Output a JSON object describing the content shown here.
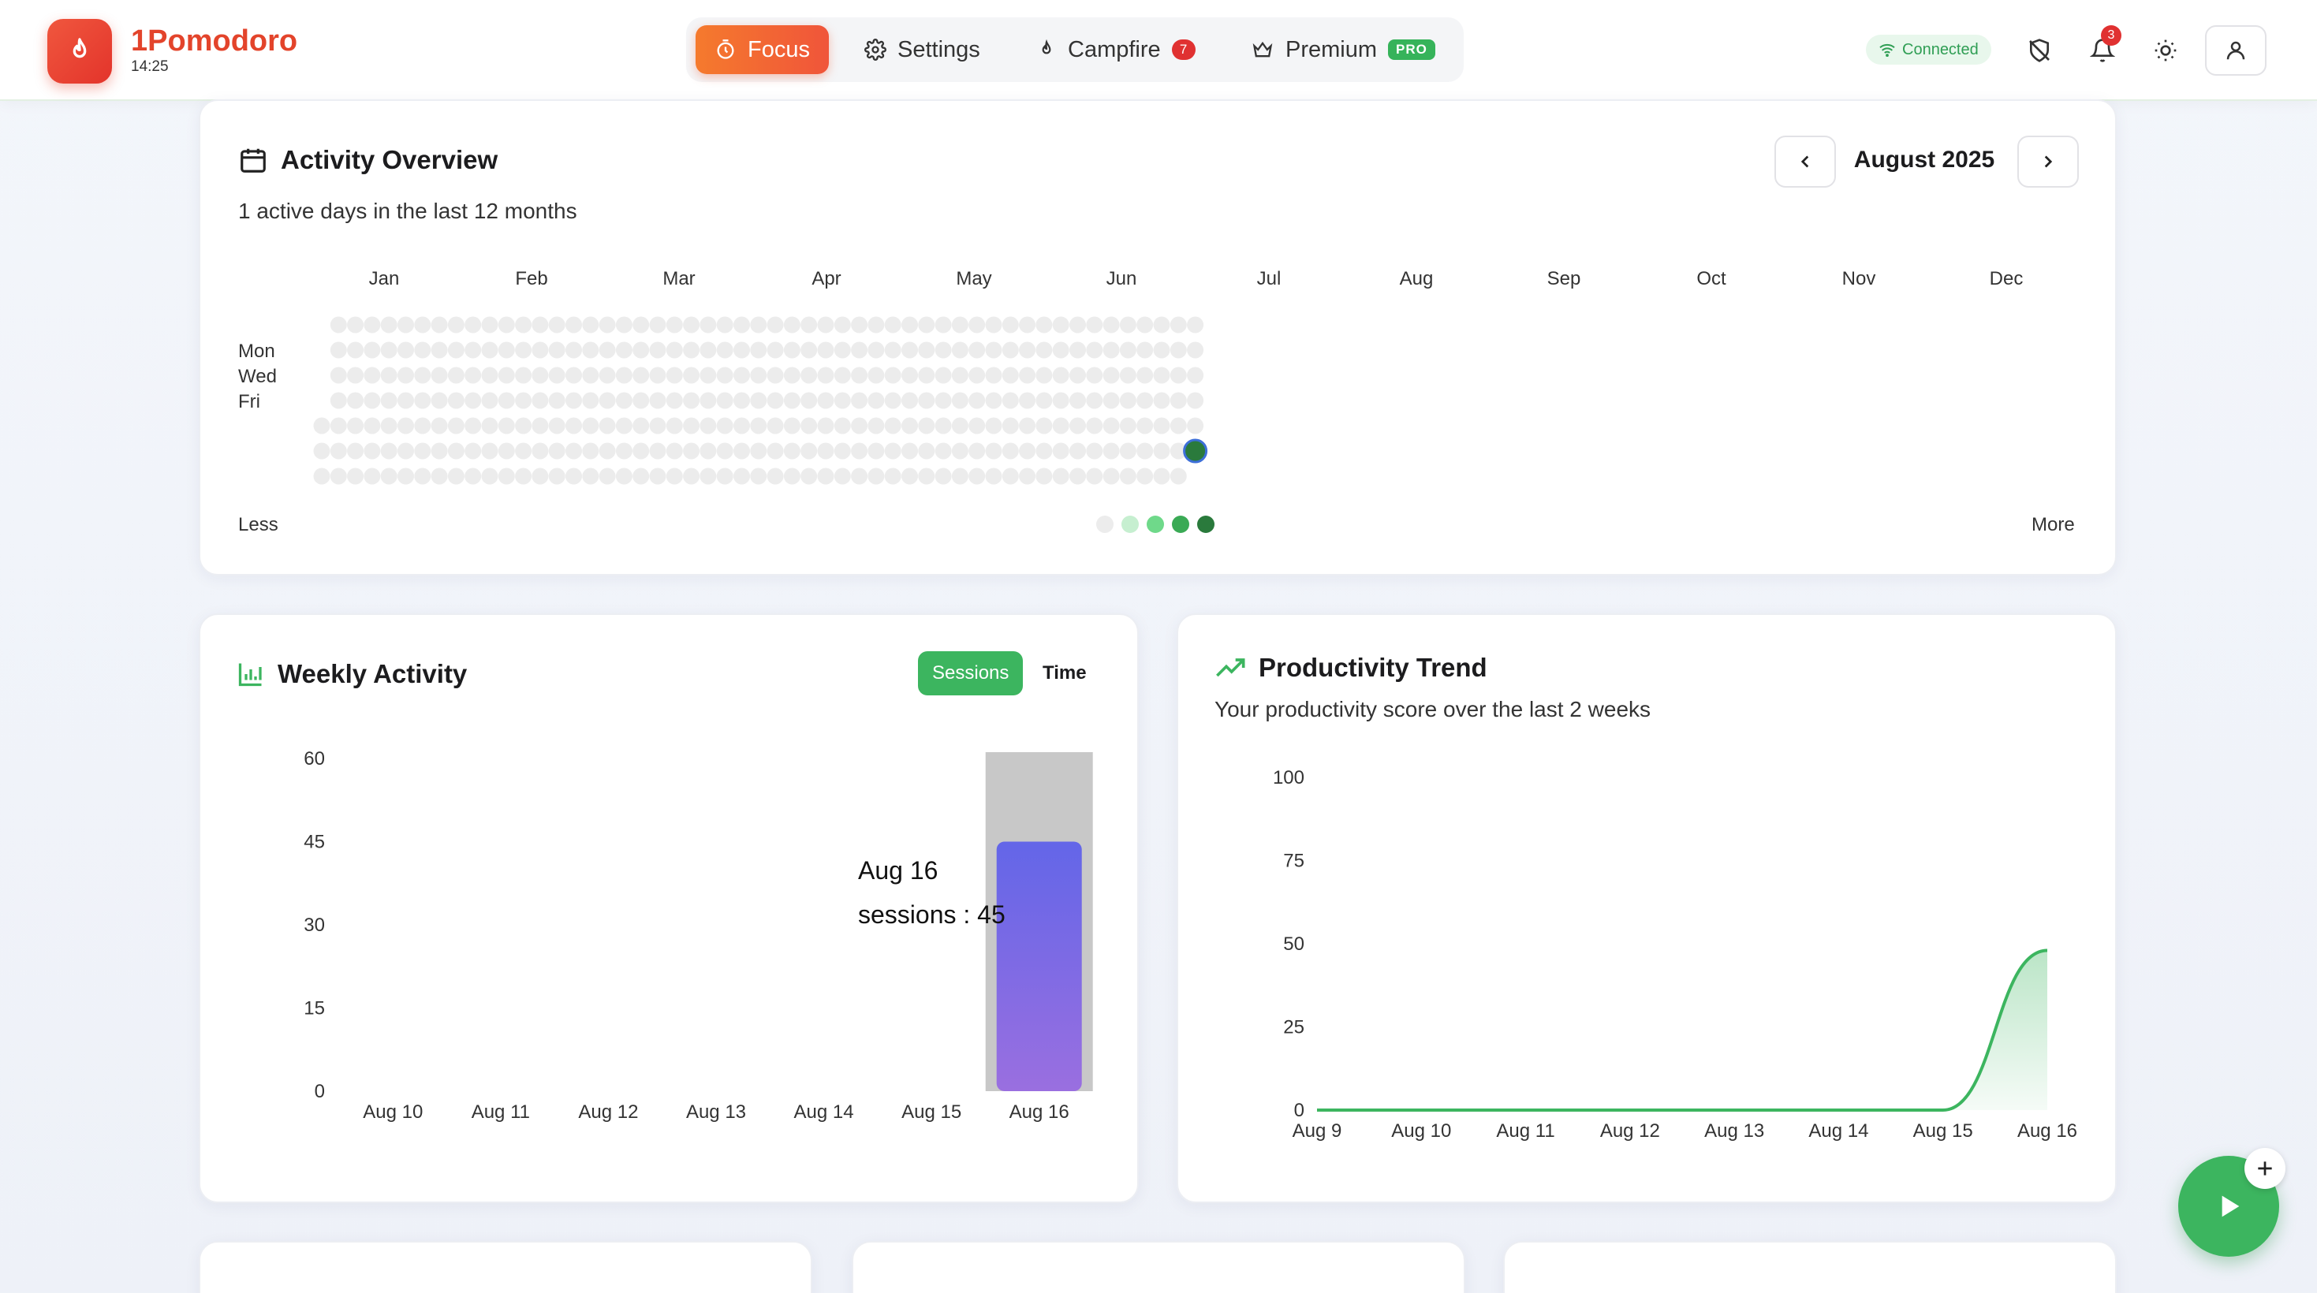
{
  "header": {
    "brand": "1Pomodoro",
    "time": "14:25",
    "nav": {
      "focus": "Focus",
      "settings": "Settings",
      "campfire": "Campfire",
      "campfire_badge": "7",
      "premium": "Premium",
      "premium_badge": "PRO"
    },
    "status": "Connected",
    "notification_count": "3"
  },
  "activity_overview": {
    "title": "Activity Overview",
    "subtitle": "1 active days in the last 12 months",
    "month": "August 2025",
    "months": [
      "Jan",
      "Feb",
      "Mar",
      "Apr",
      "May",
      "Jun",
      "Jul",
      "Aug",
      "Sep",
      "Oct",
      "Nov",
      "Dec"
    ],
    "days": [
      "Mon",
      "Wed",
      "Fri"
    ],
    "legend_less": "Less",
    "legend_more": "More",
    "legend_colors": [
      "#ececec",
      "#c6efd0",
      "#6fd98a",
      "#3aaa55",
      "#2a7a3c"
    ]
  },
  "weekly_activity": {
    "title": "Weekly Activity",
    "toggle_sessions": "Sessions",
    "toggle_time": "Time",
    "tooltip_date": "Aug 16",
    "tooltip_value": "sessions : 45"
  },
  "productivity_trend": {
    "title": "Productivity Trend",
    "subtitle": "Your productivity score over the last 2 weeks"
  },
  "chart_data": [
    {
      "type": "bar",
      "title": "Weekly Activity",
      "categories": [
        "Aug 10",
        "Aug 11",
        "Aug 12",
        "Aug 13",
        "Aug 14",
        "Aug 15",
        "Aug 16"
      ],
      "values": [
        0,
        0,
        0,
        0,
        0,
        0,
        45
      ],
      "yticks": [
        "60",
        "45",
        "30",
        "15",
        "0"
      ],
      "ylim": [
        0,
        60
      ],
      "series_name": "sessions"
    },
    {
      "type": "area",
      "title": "Productivity Trend",
      "categories": [
        "Aug 9",
        "Aug 10",
        "Aug 11",
        "Aug 12",
        "Aug 13",
        "Aug 14",
        "Aug 15",
        "Aug 16"
      ],
      "values": [
        0,
        0,
        0,
        0,
        0,
        0,
        0,
        48
      ],
      "yticks": [
        "100",
        "75",
        "50",
        "25",
        "0"
      ],
      "ylim": [
        0,
        100
      ]
    }
  ]
}
